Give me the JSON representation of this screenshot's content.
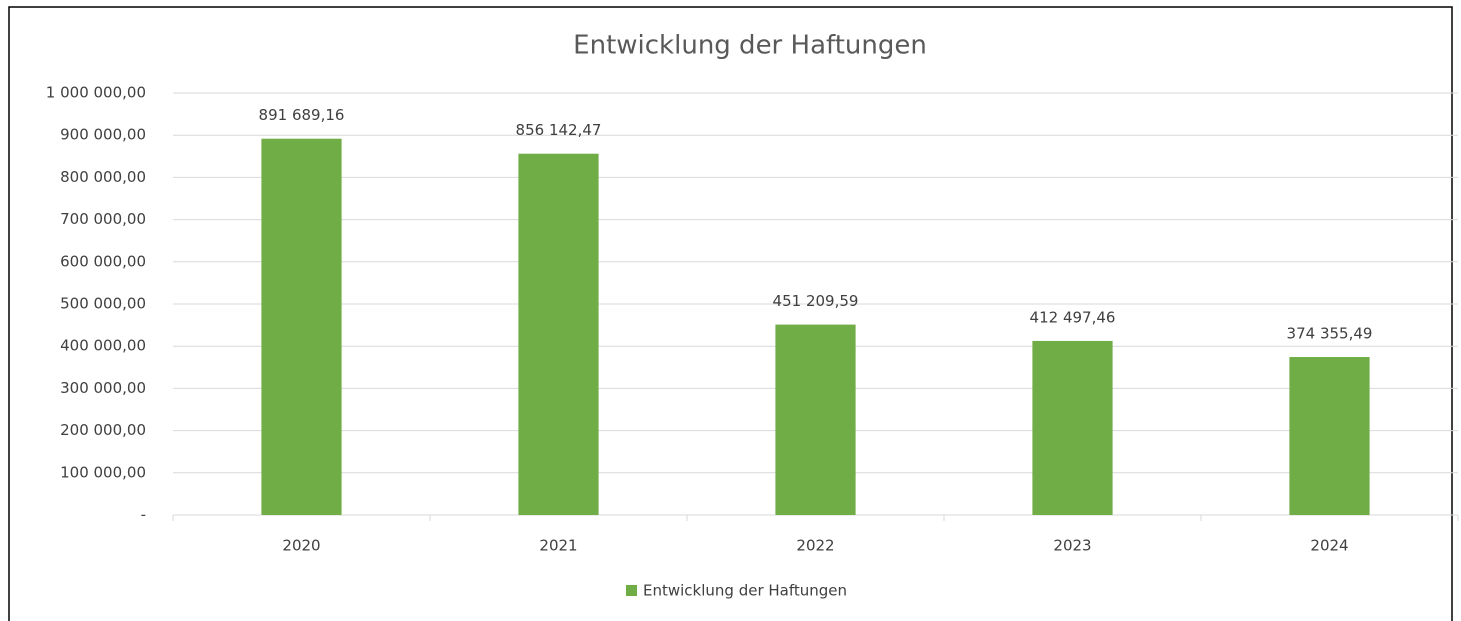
{
  "chart_data": {
    "type": "bar",
    "title": "Entwicklung der Haftungen",
    "categories": [
      "2020",
      "2021",
      "2022",
      "2023",
      "2024"
    ],
    "series": [
      {
        "name": "Entwicklung der Haftungen",
        "color": "#70ad47",
        "values": [
          891689.16,
          856142.47,
          451209.59,
          412497.46,
          374355.49
        ],
        "value_labels": [
          "891 689,16",
          "856 142,47",
          "451 209,59",
          "412 497,46",
          "374 355,49"
        ]
      }
    ],
    "ylim": [
      0,
      1000000
    ],
    "yticks": [
      {
        "value": 0,
        "label": "-"
      },
      {
        "value": 100000,
        "label": "100 000,00"
      },
      {
        "value": 200000,
        "label": "200 000,00"
      },
      {
        "value": 300000,
        "label": "300 000,00"
      },
      {
        "value": 400000,
        "label": "400 000,00"
      },
      {
        "value": 500000,
        "label": "500 000,00"
      },
      {
        "value": 600000,
        "label": "600 000,00"
      },
      {
        "value": 700000,
        "label": "700 000,00"
      },
      {
        "value": 800000,
        "label": "800 000,00"
      },
      {
        "value": 900000,
        "label": "900 000,00"
      },
      {
        "value": 1000000,
        "label": "1 000 000,00"
      }
    ],
    "grid": true,
    "legend": "bottom"
  }
}
